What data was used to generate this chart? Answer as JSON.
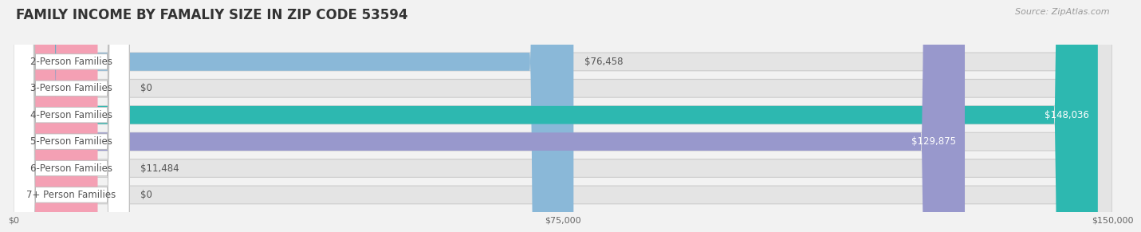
{
  "title": "FAMILY INCOME BY FAMALIY SIZE IN ZIP CODE 53594",
  "source": "Source: ZipAtlas.com",
  "categories": [
    "2-Person Families",
    "3-Person Families",
    "4-Person Families",
    "5-Person Families",
    "6-Person Families",
    "7+ Person Families"
  ],
  "values": [
    76458,
    0,
    148036,
    129875,
    11484,
    0
  ],
  "bar_colors": [
    "#8ab8d8",
    "#c0a0cc",
    "#2db8b0",
    "#9898cc",
    "#f4a0b4",
    "#f0c890"
  ],
  "label_colors": [
    "#444444",
    "#444444",
    "#ffffff",
    "#ffffff",
    "#444444",
    "#444444"
  ],
  "value_labels": [
    "$76,458",
    "$0",
    "$148,036",
    "$129,875",
    "$11,484",
    "$0"
  ],
  "xlim": [
    0,
    150000
  ],
  "xticks": [
    0,
    75000,
    150000
  ],
  "xtick_labels": [
    "$0",
    "$75,000",
    "$150,000"
  ],
  "background_color": "#f2f2f2",
  "bar_background_color": "#e4e4e4",
  "title_fontsize": 12,
  "source_fontsize": 8,
  "label_fontsize": 8.5,
  "value_fontsize": 8.5
}
